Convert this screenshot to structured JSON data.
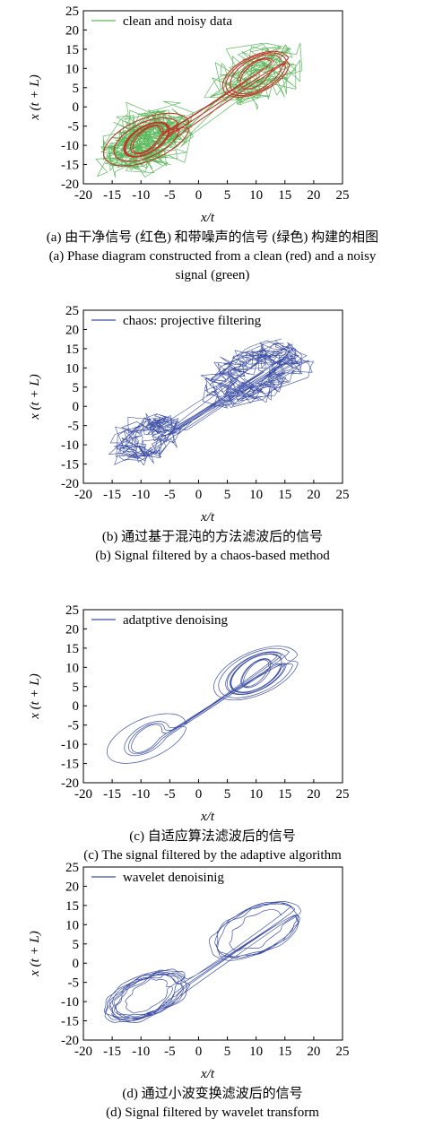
{
  "chart_data": [
    {
      "type": "line",
      "xlabel": "x/t",
      "ylabel": "x (t + L)",
      "xlim": [
        -20,
        25
      ],
      "ylim": [
        -20,
        25
      ],
      "xticks": [
        -20,
        -15,
        -10,
        -5,
        0,
        5,
        10,
        15,
        20,
        25
      ],
      "yticks": [
        25,
        20,
        15,
        10,
        5,
        0,
        -5,
        -10,
        -15,
        -20
      ],
      "legend": {
        "placement": "top-left",
        "entries": [
          "clean and noisy data"
        ]
      },
      "series": [
        {
          "name": "clean and noisy data",
          "color": "#5cb85c",
          "style": "very-noisy"
        },
        {
          "color": "#c0392b",
          "style": "clean"
        }
      ],
      "caption_cn": "(a) 由干净信号 (红色) 和带噪声的信号 (绿色) 构建的相图",
      "caption_en_1": "(a) Phase diagram constructed from a clean (red) and a noisy",
      "caption_en_2": "signal (green)"
    },
    {
      "type": "line",
      "xlabel": "x/t",
      "ylabel": "x (t + L)",
      "xlim": [
        -20,
        25
      ],
      "ylim": [
        -20,
        25
      ],
      "xticks": [
        -20,
        -15,
        -10,
        -5,
        0,
        5,
        10,
        15,
        20,
        25
      ],
      "yticks": [
        25,
        20,
        15,
        10,
        5,
        0,
        -5,
        -10,
        -15,
        -20
      ],
      "legend": {
        "placement": "top-left",
        "entries": [
          "chaos: projective filtering"
        ]
      },
      "series": [
        {
          "name": "chaos: projective filtering",
          "color": "#3d4fa6",
          "style": "noisy"
        }
      ],
      "caption_cn": "(b) 通过基于混沌的方法滤波后的信号",
      "caption_en_1": "(b) Signal filtered by a chaos-based method"
    },
    {
      "type": "line",
      "xlabel": "x/t",
      "ylabel": "x (t + L)",
      "xlim": [
        -20,
        25
      ],
      "ylim": [
        -20,
        25
      ],
      "xticks": [
        -20,
        -15,
        -10,
        -5,
        0,
        5,
        10,
        15,
        20,
        25
      ],
      "yticks": [
        25,
        20,
        15,
        10,
        5,
        0,
        -5,
        -10,
        -15,
        -20
      ],
      "legend": {
        "placement": "top-left",
        "entries": [
          "adatptive denoising"
        ]
      },
      "series": [
        {
          "name": "adatptive denoising",
          "color": "#3d4fa6",
          "style": "smooth"
        }
      ],
      "caption_cn": "(c) 自适应算法滤波后的信号",
      "caption_en_1": "(c) The signal filtered by the adaptive algorithm"
    },
    {
      "type": "line",
      "xlabel": "x/t",
      "ylabel": "x (t + L)",
      "xlim": [
        -20,
        25
      ],
      "ylim": [
        -20,
        25
      ],
      "xticks": [
        -20,
        -15,
        -10,
        -5,
        0,
        5,
        10,
        15,
        20,
        25
      ],
      "yticks": [
        25,
        20,
        15,
        10,
        5,
        0,
        -5,
        -10,
        -15,
        -20
      ],
      "legend": {
        "placement": "top-left",
        "entries": [
          "wavelet denoisinig"
        ]
      },
      "series": [
        {
          "name": "wavelet denoisinig",
          "color": "#3d4fa6",
          "style": "slightly-noisy"
        }
      ],
      "caption_cn": "(d) 通过小波变换滤波后的信号",
      "caption_en_1": "(d) Signal filtered by wavelet transform"
    }
  ]
}
